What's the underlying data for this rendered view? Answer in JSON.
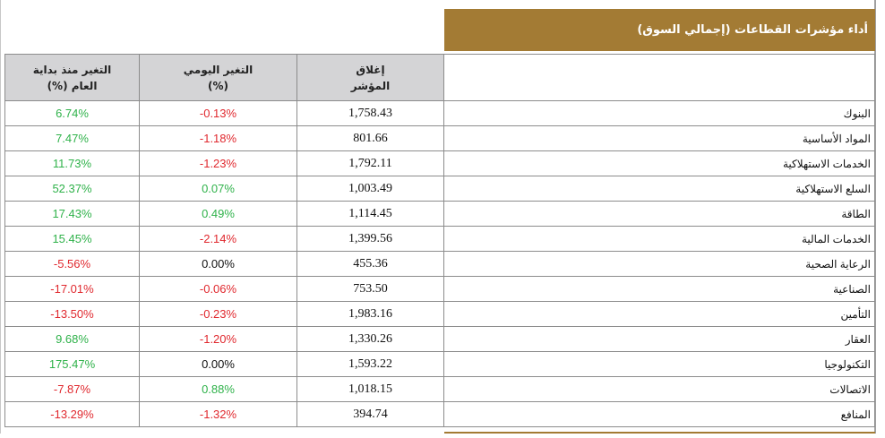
{
  "title": "أداء مؤشرات القطاعات (إجمالي السوق)",
  "headers": {
    "ytd_change": "التغير منذ بداية العام (%)",
    "daily_change": "التغير اليومي (%)",
    "close": "إغلاق المؤشر"
  },
  "rows": [
    {
      "sector": "البنوك",
      "close": "1,758.43",
      "daily": "-0.13%",
      "ytd": "6.74%"
    },
    {
      "sector": "المواد الأساسية",
      "close": "801.66",
      "daily": "-1.18%",
      "ytd": "7.47%"
    },
    {
      "sector": "الخدمات الاستهلاكية",
      "close": "1,792.11",
      "daily": "-1.23%",
      "ytd": "11.73%"
    },
    {
      "sector": "السلع الاستهلاكية",
      "close": "1,003.49",
      "daily": "0.07%",
      "ytd": "52.37%"
    },
    {
      "sector": "الطاقة",
      "close": "1,114.45",
      "daily": "0.49%",
      "ytd": "17.43%"
    },
    {
      "sector": "الخدمات المالية",
      "close": "1,399.56",
      "daily": "-2.14%",
      "ytd": "15.45%"
    },
    {
      "sector": "الرعاية الصحية",
      "close": "455.36",
      "daily": "0.00%",
      "ytd": "-5.56%"
    },
    {
      "sector": "الصناعية",
      "close": "753.50",
      "daily": "-0.06%",
      "ytd": "-17.01%"
    },
    {
      "sector": "التأمين",
      "close": "1,983.16",
      "daily": "-0.23%",
      "ytd": "-13.50%"
    },
    {
      "sector": "العقار",
      "close": "1,330.26",
      "daily": "-1.20%",
      "ytd": "9.68%"
    },
    {
      "sector": "التكنولوجيا",
      "close": "1,593.22",
      "daily": "0.00%",
      "ytd": "175.47%"
    },
    {
      "sector": "الاتصالات",
      "close": "1,018.15",
      "daily": "0.88%",
      "ytd": "-7.87%"
    },
    {
      "sector": "المنافع",
      "close": "394.74",
      "daily": "-1.32%",
      "ytd": "-13.29%"
    }
  ],
  "colors": {
    "accent": "#a37b34",
    "header_bg": "#d4d4d6",
    "positive": "#2fb24a",
    "negative": "#e0282e"
  }
}
